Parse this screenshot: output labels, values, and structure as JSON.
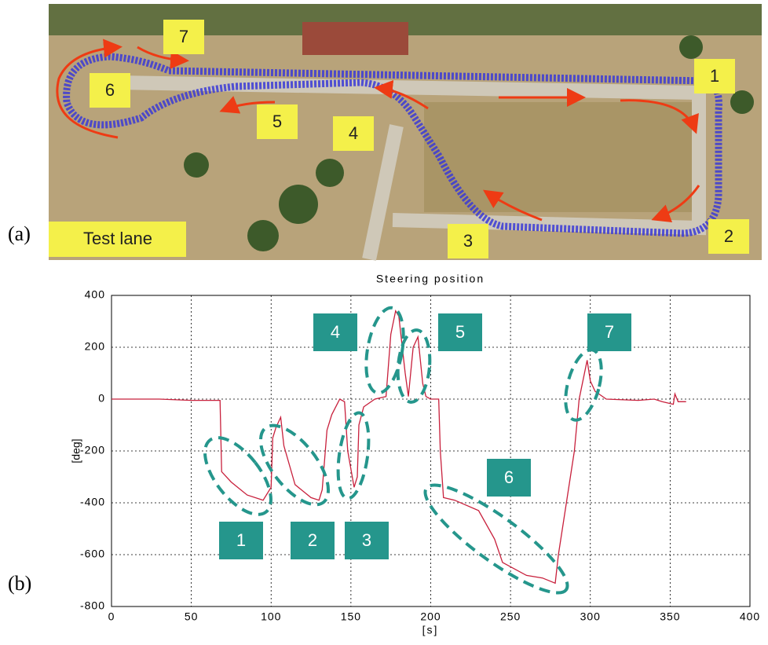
{
  "panel_a": {
    "panel_label": "(a)",
    "caption": "Test lane",
    "labels": [
      "1",
      "2",
      "3",
      "4",
      "5",
      "6",
      "7"
    ]
  },
  "chart_data": {
    "type": "line",
    "panel_label": "(b)",
    "title": "Steering position",
    "xlabel": "[s]",
    "ylabel": "[deg]",
    "x": [
      0,
      30,
      50,
      68,
      69,
      75,
      85,
      95,
      100,
      101,
      103,
      106,
      108,
      115,
      125,
      130,
      132,
      135,
      138,
      143,
      146,
      148,
      152,
      154,
      155,
      158,
      165,
      172,
      175,
      178,
      180,
      184,
      186,
      189,
      192,
      195,
      197,
      200,
      205,
      206,
      208,
      215,
      230,
      240,
      245,
      260,
      270,
      278,
      280,
      285,
      290,
      293,
      297,
      298,
      300,
      303,
      310,
      330,
      340,
      345,
      352,
      353,
      355,
      360
    ],
    "values": [
      0,
      0,
      -5,
      -5,
      -280,
      -320,
      -370,
      -390,
      -340,
      -150,
      -110,
      -70,
      -180,
      -330,
      -380,
      -390,
      -350,
      -120,
      -60,
      0,
      -10,
      -200,
      -340,
      -300,
      -100,
      -30,
      0,
      10,
      250,
      340,
      320,
      100,
      10,
      200,
      240,
      60,
      10,
      0,
      0,
      -200,
      -380,
      -390,
      -430,
      -540,
      -630,
      -680,
      -690,
      -710,
      -600,
      -400,
      -200,
      0,
      120,
      150,
      70,
      30,
      0,
      -5,
      0,
      -10,
      -20,
      20,
      -10,
      -10
    ],
    "color": "#c8203c",
    "xlim": [
      0,
      400
    ],
    "xticks": [
      0,
      50,
      100,
      150,
      200,
      250,
      300,
      350,
      400
    ],
    "ylim": [
      -800,
      400
    ],
    "yticks": [
      -800,
      -600,
      -400,
      -200,
      0,
      200,
      400
    ],
    "grid": true,
    "annotations": [
      "1",
      "2",
      "3",
      "4",
      "5",
      "6",
      "7"
    ]
  }
}
